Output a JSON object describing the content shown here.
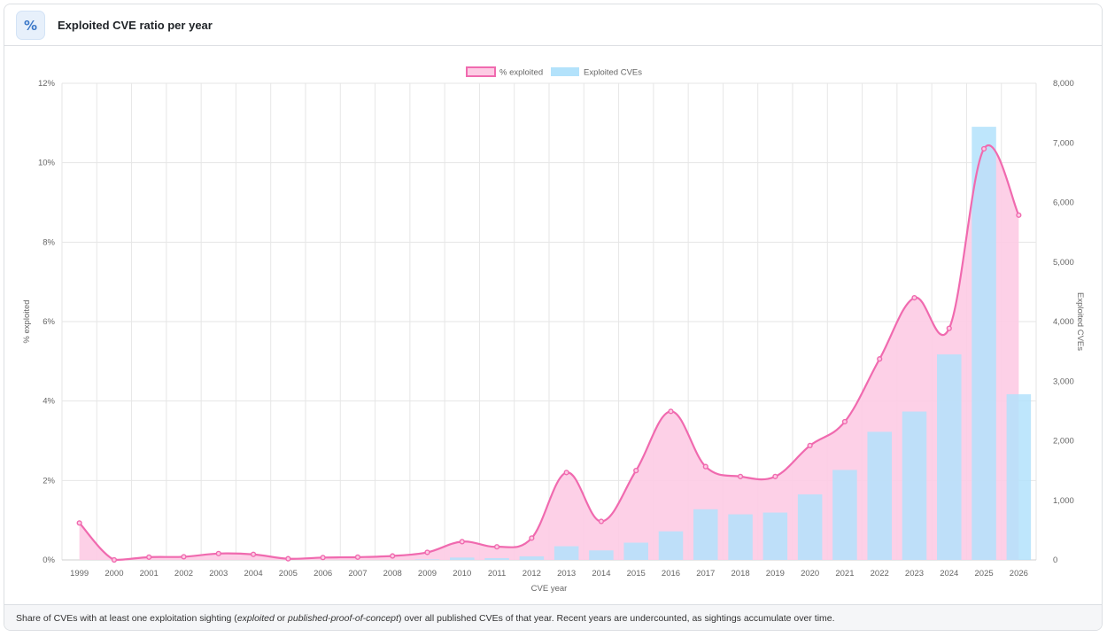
{
  "header": {
    "icon": "percent-icon",
    "icon_glyph": "%",
    "title": "Exploited CVE ratio per year"
  },
  "footer": {
    "text_before": "Share of CVEs with at least one exploitation sighting (",
    "em1": "exploited",
    "text_or": " or ",
    "em2": "published-proof-of-concept",
    "text_after": ") over all published CVEs of that year. Recent years are undercounted, as sightings accumulate over time."
  },
  "colors": {
    "line": "#f06aaf",
    "area_fill": "#fdcbe4",
    "bar_fill": "#b3e2fb",
    "grid": "#e6e6e6",
    "axis_text": "#666666"
  },
  "chart_data": {
    "type": "bar",
    "categories": [
      "1999",
      "2000",
      "2001",
      "2002",
      "2003",
      "2004",
      "2005",
      "2006",
      "2007",
      "2008",
      "2009",
      "2010",
      "2011",
      "2012",
      "2013",
      "2014",
      "2015",
      "2016",
      "2017",
      "2018",
      "2019",
      "2020",
      "2021",
      "2022",
      "2023",
      "2024",
      "2025",
      "2026"
    ],
    "series": [
      {
        "name": "% exploited",
        "type": "area",
        "axis": "left",
        "values": [
          0.93,
          0.0,
          0.07,
          0.08,
          0.16,
          0.14,
          0.03,
          0.06,
          0.07,
          0.1,
          0.19,
          0.46,
          0.33,
          0.55,
          2.2,
          0.97,
          2.25,
          3.74,
          2.35,
          2.1,
          2.1,
          2.88,
          3.48,
          5.06,
          6.6,
          5.83,
          10.35,
          8.68
        ]
      },
      {
        "name": "Exploited CVEs",
        "type": "bar",
        "axis": "right",
        "values": [
          0,
          0,
          0,
          0,
          0,
          0,
          0,
          0,
          0,
          0,
          10,
          40,
          30,
          60,
          230,
          160,
          290,
          480,
          850,
          765,
          795,
          1100,
          1510,
          2150,
          2490,
          3450,
          7270,
          2780
        ]
      }
    ],
    "xlabel": "CVE year",
    "ylabel": "% exploited",
    "y2label": "Exploited CVEs",
    "ylim": [
      0,
      12
    ],
    "y2lim": [
      0,
      8000
    ],
    "yticks": [
      "0%",
      "2%",
      "4%",
      "6%",
      "8%",
      "10%",
      "12%"
    ],
    "y2ticks": [
      "0",
      "1,000",
      "2,000",
      "3,000",
      "4,000",
      "5,000",
      "6,000",
      "7,000",
      "8,000"
    ],
    "legend_position": "top-center",
    "grid": true
  }
}
